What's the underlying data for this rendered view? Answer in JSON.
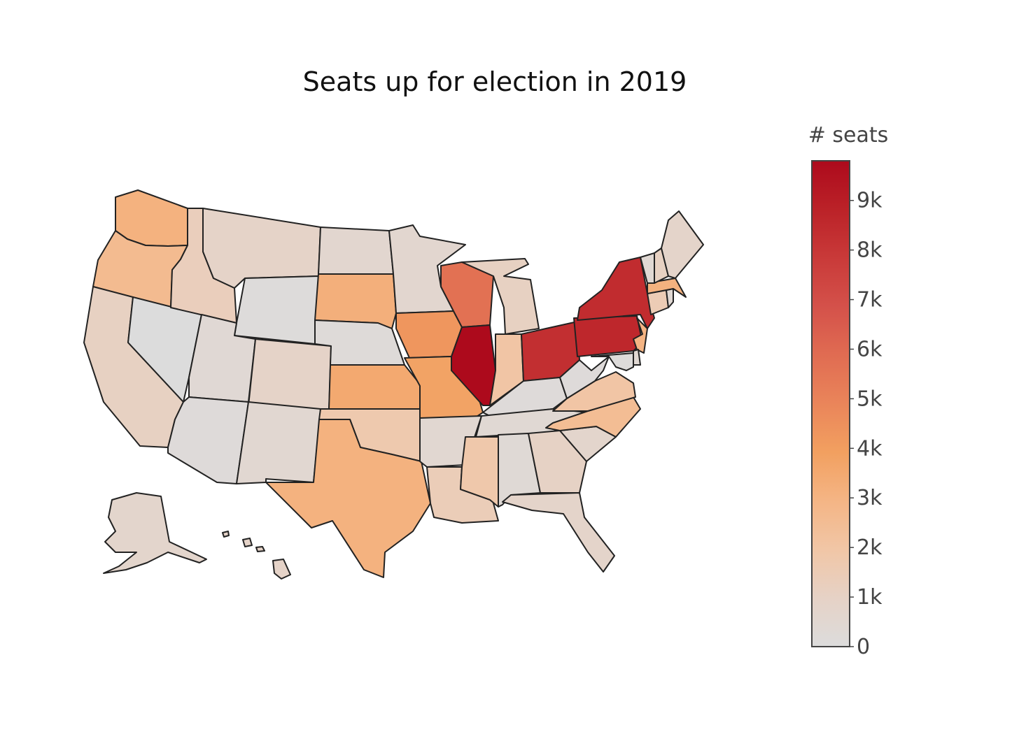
{
  "title": "Seats up for election in 2019",
  "colorbar": {
    "title": "# seats",
    "min": 0,
    "max": 9800,
    "ticks": [
      {
        "value": 0,
        "label": "0"
      },
      {
        "value": 1000,
        "label": "1k"
      },
      {
        "value": 2000,
        "label": "2k"
      },
      {
        "value": 3000,
        "label": "3k"
      },
      {
        "value": 4000,
        "label": "4k"
      },
      {
        "value": 5000,
        "label": "5k"
      },
      {
        "value": 6000,
        "label": "6k"
      },
      {
        "value": 7000,
        "label": "7k"
      },
      {
        "value": 8000,
        "label": "8k"
      },
      {
        "value": 9000,
        "label": "9k"
      }
    ],
    "colorscale": [
      [
        0.0,
        "#dcdcdc"
      ],
      [
        0.1,
        "#e6d2c6"
      ],
      [
        0.2,
        "#f1c6a6"
      ],
      [
        0.3,
        "#f4b585"
      ],
      [
        0.4,
        "#f2a060"
      ],
      [
        0.5,
        "#ea855a"
      ],
      [
        0.6,
        "#e06c52"
      ],
      [
        0.7,
        "#d4514a"
      ],
      [
        0.8,
        "#c93a39"
      ],
      [
        0.9,
        "#bb2228"
      ],
      [
        1.0,
        "#ad0a1c"
      ]
    ]
  },
  "chart_data": {
    "type": "choropleth",
    "scope": "usa",
    "z_label": "# seats",
    "values": {
      "WA": 3100,
      "OR": 2600,
      "CA": 1100,
      "NV": 0,
      "ID": 1300,
      "MT": 900,
      "WY": 100,
      "UT": 350,
      "AZ": 150,
      "CO": 900,
      "NM": 500,
      "ND": 600,
      "SD": 3200,
      "NE": 200,
      "KS": 3500,
      "OK": 1700,
      "TX": 3100,
      "MN": 600,
      "IA": 4300,
      "MO": 3800,
      "AR": 500,
      "LA": 1400,
      "WI": 5700,
      "IL": 9800,
      "MI": 1100,
      "IN": 2000,
      "OH": 8300,
      "KY": 150,
      "TN": 400,
      "MS": 1800,
      "AL": 300,
      "GA": 1000,
      "FL": 800,
      "SC": 700,
      "NC": 2500,
      "VA": 2000,
      "WV": 150,
      "PA": 8600,
      "NY": 8400,
      "VT": 400,
      "NH": 1100,
      "ME": 800,
      "MA": 3100,
      "CT": 1500,
      "RI": 400,
      "NJ": 3000,
      "DE": 400,
      "MD": 100,
      "AK": 700,
      "HI": 900
    }
  }
}
